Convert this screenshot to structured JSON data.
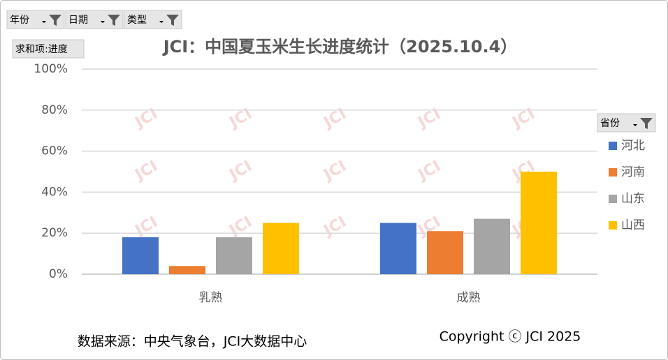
{
  "filters": [
    "年份",
    "日期",
    "类型"
  ],
  "value_field": "求和项:进度",
  "legend_field": "省份",
  "chart_data": {
    "type": "bar",
    "title": "JCI：中国夏玉米生长进度统计（2025.10.4）",
    "categories": [
      "乳熟",
      "成熟"
    ],
    "series": [
      {
        "name": "河北",
        "color": "#4472c4",
        "values": [
          18,
          25
        ]
      },
      {
        "name": "河南",
        "color": "#ed7d31",
        "values": [
          4,
          21
        ]
      },
      {
        "name": "山东",
        "color": "#a5a5a5",
        "values": [
          18,
          27
        ]
      },
      {
        "name": "山西",
        "color": "#ffc000",
        "values": [
          25,
          50
        ]
      }
    ],
    "ylim": [
      0,
      100
    ],
    "yticks": [
      {
        "value": 0,
        "label": "0%"
      },
      {
        "value": 20,
        "label": "20%"
      },
      {
        "value": 40,
        "label": "40%"
      },
      {
        "value": 60,
        "label": "60%"
      },
      {
        "value": 80,
        "label": "80%"
      },
      {
        "value": 100,
        "label": "100%"
      }
    ],
    "grid": true,
    "legend": "right"
  },
  "source": "数据来源：中央气象台，JCI大数据中心",
  "copyright": "Copyright ⓒ JCI 2025",
  "watermark": "JCI"
}
